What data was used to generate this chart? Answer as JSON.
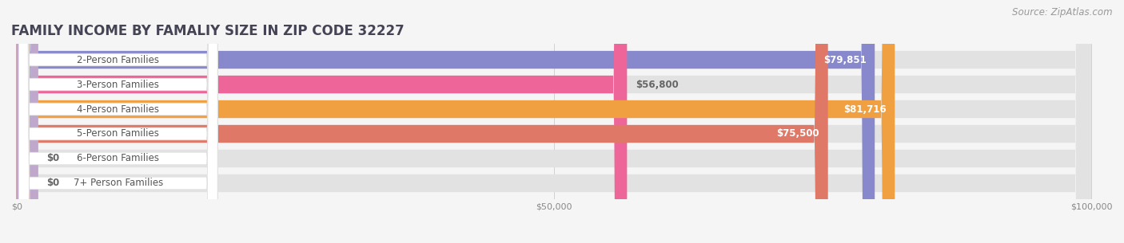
{
  "title": "FAMILY INCOME BY FAMALIY SIZE IN ZIP CODE 32227",
  "source": "Source: ZipAtlas.com",
  "categories": [
    "2-Person Families",
    "3-Person Families",
    "4-Person Families",
    "5-Person Families",
    "6-Person Families",
    "7+ Person Families"
  ],
  "values": [
    79851,
    56800,
    81716,
    75500,
    0,
    0
  ],
  "bar_colors": [
    "#8888cc",
    "#ee6699",
    "#f0a040",
    "#e07868",
    "#a0b8e8",
    "#c0a8cc"
  ],
  "value_labels": [
    "$79,851",
    "$56,800",
    "$81,716",
    "$75,500",
    "$0",
    "$0"
  ],
  "value_inside": [
    true,
    false,
    true,
    true,
    false,
    false
  ],
  "xmax": 100000,
  "xticks": [
    0,
    50000,
    100000
  ],
  "xtick_labels": [
    "$0",
    "$50,000",
    "$100,000"
  ],
  "bg_color": "#f5f5f5",
  "bar_bg_color": "#e2e2e2",
  "title_color": "#444455",
  "source_color": "#999999",
  "title_fontsize": 12,
  "source_fontsize": 8.5,
  "label_fontsize": 8.5,
  "value_fontsize": 8.5
}
